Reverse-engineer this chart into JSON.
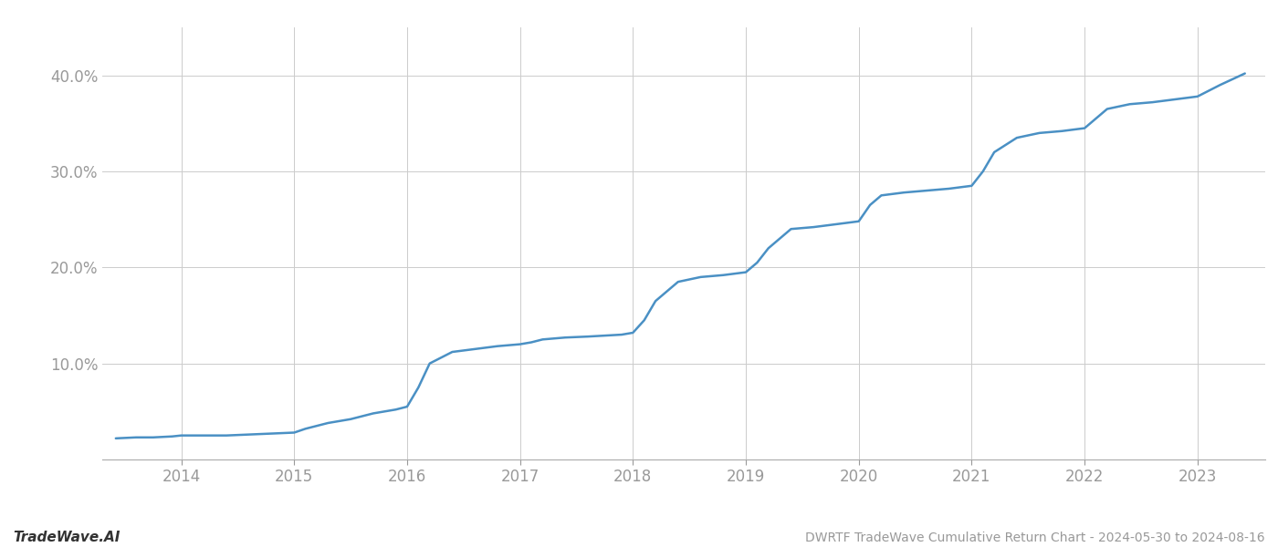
{
  "title": "DWRTF TradeWave Cumulative Return Chart - 2024-05-30 to 2024-08-16",
  "watermark_left": "TradeWave.AI",
  "line_color": "#4a90c4",
  "background_color": "#ffffff",
  "grid_color": "#cccccc",
  "x_years": [
    2014,
    2015,
    2016,
    2017,
    2018,
    2019,
    2020,
    2021,
    2022,
    2023
  ],
  "x_data": [
    2013.42,
    2013.6,
    2013.75,
    2013.92,
    2014.0,
    2014.1,
    2014.2,
    2014.4,
    2014.6,
    2014.8,
    2015.0,
    2015.1,
    2015.3,
    2015.5,
    2015.7,
    2015.9,
    2016.0,
    2016.1,
    2016.2,
    2016.4,
    2016.6,
    2016.8,
    2017.0,
    2017.1,
    2017.2,
    2017.4,
    2017.6,
    2017.9,
    2018.0,
    2018.1,
    2018.2,
    2018.4,
    2018.6,
    2018.8,
    2019.0,
    2019.1,
    2019.2,
    2019.4,
    2019.6,
    2019.8,
    2020.0,
    2020.1,
    2020.2,
    2020.4,
    2020.6,
    2020.8,
    2021.0,
    2021.1,
    2021.2,
    2021.4,
    2021.6,
    2021.8,
    2022.0,
    2022.1,
    2022.2,
    2022.4,
    2022.6,
    2022.8,
    2023.0,
    2023.2,
    2023.42
  ],
  "y_data": [
    2.2,
    2.3,
    2.3,
    2.4,
    2.5,
    2.5,
    2.5,
    2.5,
    2.6,
    2.7,
    2.8,
    3.2,
    3.8,
    4.2,
    4.8,
    5.2,
    5.5,
    7.5,
    10.0,
    11.2,
    11.5,
    11.8,
    12.0,
    12.2,
    12.5,
    12.7,
    12.8,
    13.0,
    13.2,
    14.5,
    16.5,
    18.5,
    19.0,
    19.2,
    19.5,
    20.5,
    22.0,
    24.0,
    24.2,
    24.5,
    24.8,
    26.5,
    27.5,
    27.8,
    28.0,
    28.2,
    28.5,
    30.0,
    32.0,
    33.5,
    34.0,
    34.2,
    34.5,
    35.5,
    36.5,
    37.0,
    37.2,
    37.5,
    37.8,
    39.0,
    40.2
  ],
  "ylim": [
    0,
    45
  ],
  "yticks": [
    10.0,
    20.0,
    30.0,
    40.0
  ],
  "ytick_labels": [
    "10.0%",
    "20.0%",
    "30.0%",
    "40.0%"
  ],
  "xlim": [
    2013.3,
    2023.6
  ],
  "tick_color": "#999999",
  "spine_color": "#aaaaaa",
  "title_fontsize": 10,
  "watermark_fontsize": 11,
  "tick_fontsize": 12,
  "line_width": 1.8
}
